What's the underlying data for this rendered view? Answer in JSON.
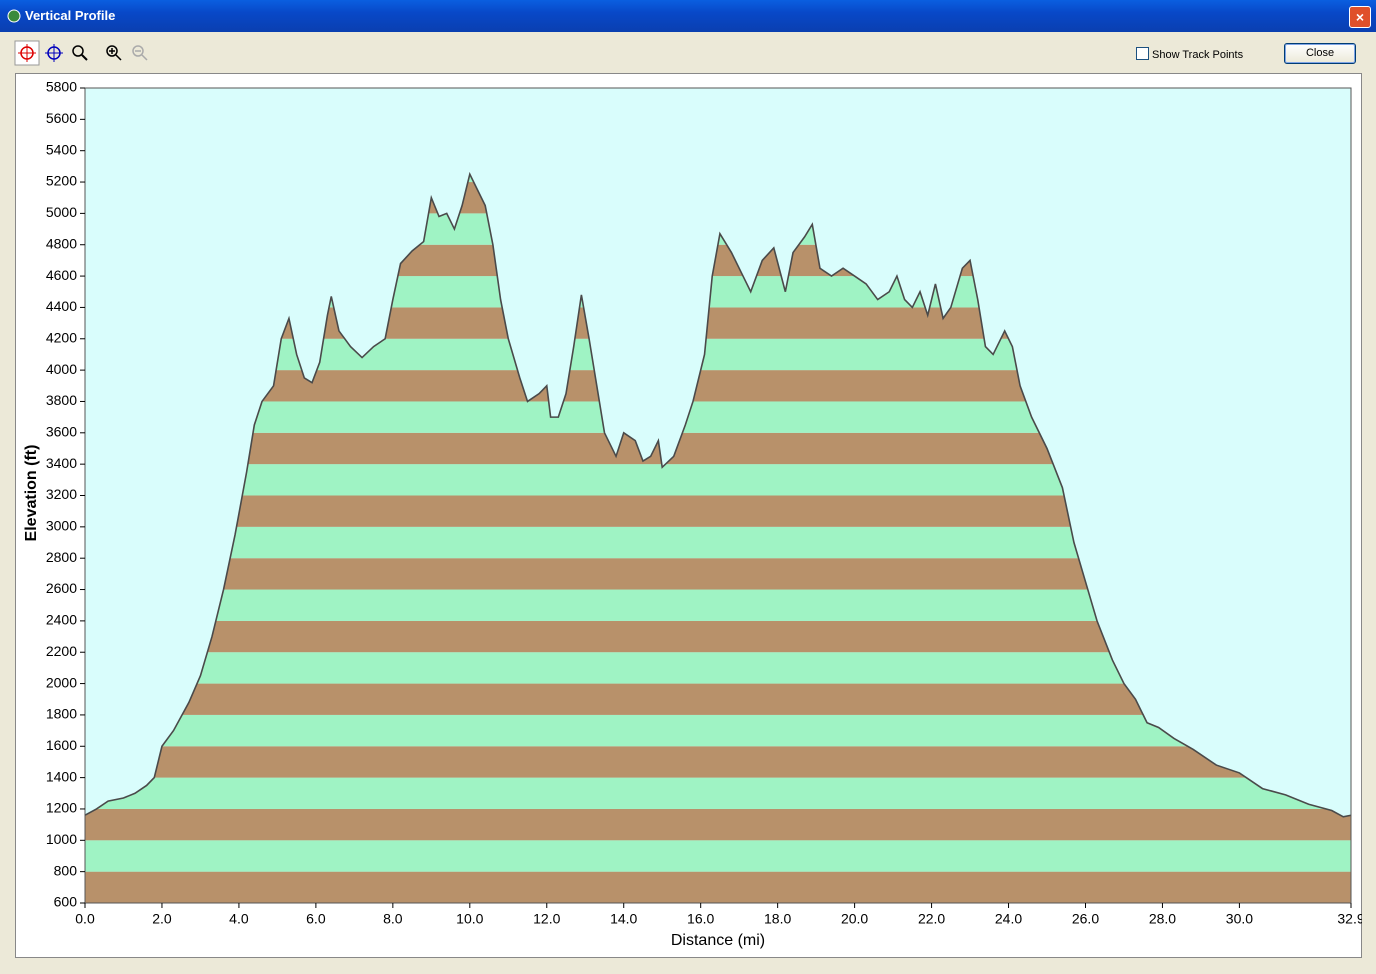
{
  "window": {
    "title": "Vertical Profile",
    "show_track_points": "Show Track Points",
    "close": "Close"
  },
  "chart_data": {
    "type": "area",
    "xlabel": "Distance   (mi)",
    "ylabel": "Elevation (ft)",
    "xlim": [
      0,
      32.9
    ],
    "ylim": [
      600,
      5800
    ],
    "xticks": [
      {
        "value": 0,
        "label": "0.0"
      },
      {
        "value": 2,
        "label": "2.0"
      },
      {
        "value": 4,
        "label": "4.0"
      },
      {
        "value": 6,
        "label": "6.0"
      },
      {
        "value": 8,
        "label": "8.0"
      },
      {
        "value": 10,
        "label": "10.0"
      },
      {
        "value": 12,
        "label": "12.0"
      },
      {
        "value": 14,
        "label": "14.0"
      },
      {
        "value": 16,
        "label": "16.0"
      },
      {
        "value": 18,
        "label": "18.0"
      },
      {
        "value": 20,
        "label": "20.0"
      },
      {
        "value": 22,
        "label": "22.0"
      },
      {
        "value": 24,
        "label": "24.0"
      },
      {
        "value": 26,
        "label": "26.0"
      },
      {
        "value": 28,
        "label": "28.0"
      },
      {
        "value": 30,
        "label": "30.0"
      },
      32.9
    ],
    "yticks": [
      600,
      800,
      1000,
      1200,
      1400,
      1600,
      1800,
      2000,
      2200,
      2400,
      2600,
      2800,
      3000,
      3200,
      3400,
      3600,
      3800,
      4000,
      4200,
      4400,
      4600,
      4800,
      5000,
      5200,
      5400,
      5600,
      5800
    ],
    "color": "#4a4a4a",
    "band_colors": [
      "#b8916a",
      "#9ff3c4"
    ],
    "background": "#d9fdfc",
    "x": [
      0,
      0.3,
      0.6,
      1.0,
      1.3,
      1.6,
      1.8,
      2.0,
      2.3,
      2.7,
      3.0,
      3.3,
      3.6,
      3.9,
      4.2,
      4.4,
      4.6,
      4.9,
      5.1,
      5.3,
      5.5,
      5.7,
      5.9,
      6.1,
      6.3,
      6.4,
      6.6,
      6.9,
      7.2,
      7.5,
      7.8,
      8.0,
      8.2,
      8.5,
      8.8,
      9.0,
      9.2,
      9.4,
      9.6,
      9.8,
      10.0,
      10.2,
      10.4,
      10.6,
      10.8,
      11.0,
      11.3,
      11.5,
      11.8,
      12.0,
      12.1,
      12.3,
      12.5,
      12.7,
      12.9,
      13.1,
      13.3,
      13.5,
      13.8,
      14.0,
      14.3,
      14.5,
      14.7,
      14.9,
      15.0,
      15.3,
      15.6,
      15.8,
      16.1,
      16.3,
      16.5,
      16.8,
      17.1,
      17.3,
      17.6,
      17.9,
      18.2,
      18.4,
      18.7,
      18.9,
      19.1,
      19.4,
      19.7,
      20.0,
      20.3,
      20.6,
      20.9,
      21.1,
      21.3,
      21.5,
      21.7,
      21.9,
      22.1,
      22.3,
      22.5,
      22.8,
      23.0,
      23.2,
      23.4,
      23.6,
      23.9,
      24.1,
      24.3,
      24.6,
      25.0,
      25.4,
      25.7,
      26.0,
      26.3,
      26.7,
      27.0,
      27.3,
      27.6,
      27.9,
      28.3,
      28.8,
      29.4,
      30.0,
      30.6,
      31.2,
      31.8,
      32.4,
      32.7,
      32.9
    ],
    "values": [
      1160,
      1200,
      1250,
      1270,
      1300,
      1350,
      1400,
      1600,
      1700,
      1880,
      2050,
      2300,
      2600,
      2950,
      3350,
      3650,
      3800,
      3900,
      4200,
      4330,
      4100,
      3950,
      3920,
      4050,
      4350,
      4470,
      4250,
      4150,
      4080,
      4150,
      4200,
      4450,
      4680,
      4760,
      4820,
      5100,
      4980,
      5000,
      4900,
      5050,
      5250,
      5150,
      5050,
      4800,
      4450,
      4200,
      3950,
      3800,
      3850,
      3900,
      3700,
      3700,
      3850,
      4150,
      4480,
      4200,
      3900,
      3600,
      3450,
      3600,
      3550,
      3420,
      3450,
      3550,
      3380,
      3450,
      3650,
      3800,
      4100,
      4600,
      4870,
      4750,
      4600,
      4500,
      4700,
      4780,
      4500,
      4750,
      4850,
      4930,
      4650,
      4600,
      4650,
      4600,
      4550,
      4450,
      4500,
      4600,
      4450,
      4400,
      4500,
      4350,
      4550,
      4330,
      4400,
      4650,
      4700,
      4450,
      4150,
      4100,
      4250,
      4150,
      3900,
      3700,
      3500,
      3250,
      2900,
      2650,
      2400,
      2150,
      2000,
      1900,
      1750,
      1720,
      1650,
      1580,
      1480,
      1430,
      1330,
      1290,
      1230,
      1190,
      1150,
      1160
    ]
  }
}
